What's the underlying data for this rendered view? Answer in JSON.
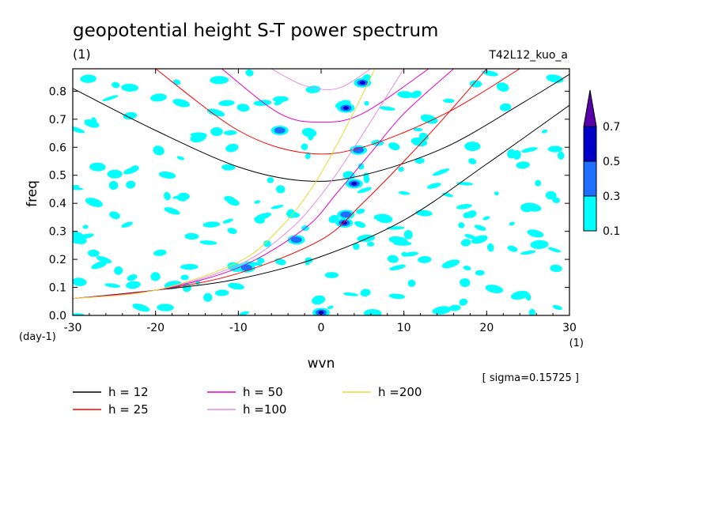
{
  "chart_data": {
    "type": "contour",
    "title": "geopotential height S-T power spectrum",
    "units_label": "(1)",
    "run_label": "T42L12_kuo_a",
    "xlabel": "wvn",
    "x_units": "(1)",
    "ylabel": "freq",
    "y_units": "(day-1)",
    "xlim": [
      -30,
      30
    ],
    "ylim": [
      0,
      0.88
    ],
    "x_ticks": [
      "-30",
      "-20",
      "-10",
      "0",
      "10",
      "20",
      "30"
    ],
    "y_ticks": [
      "0.0",
      "0.1",
      "0.2",
      "0.3",
      "0.4",
      "0.5",
      "0.6",
      "0.7",
      "0.8"
    ],
    "sigma_note": "[ sigma=0.15725 ]",
    "colorbar": {
      "levels": [
        "0.1",
        "0.3",
        "0.5",
        "0.7"
      ],
      "colors": [
        "#00ffff",
        "#1e6eff",
        "#0000c8",
        "#5a00aa"
      ]
    },
    "dispersion_curves": [
      {
        "label": "h = 12",
        "color": "#000000",
        "symmetric": {
          "x": [
            -30,
            -20,
            -10,
            -2,
            5,
            15,
            25,
            30
          ],
          "y": [
            0.81,
            0.66,
            0.53,
            0.48,
            0.5,
            0.6,
            0.77,
            0.86
          ]
        },
        "kelvin": {
          "x": [
            -30,
            -20,
            -10,
            0,
            10,
            20,
            30
          ],
          "y": [
            0.06,
            0.09,
            0.13,
            0.21,
            0.34,
            0.54,
            0.75
          ]
        }
      },
      {
        "label": "h = 25",
        "color": "#ff0000",
        "symmetric": {
          "x": [
            -20,
            -10,
            -2,
            5,
            15,
            24
          ],
          "y": [
            0.88,
            0.66,
            0.58,
            0.6,
            0.72,
            0.88
          ]
        },
        "kelvin": {
          "x": [
            -30,
            -20,
            -10,
            0,
            5,
            10,
            15,
            20
          ],
          "y": [
            0.06,
            0.09,
            0.15,
            0.27,
            0.4,
            0.55,
            0.71,
            0.88
          ]
        }
      },
      {
        "label": "h = 50",
        "color": "#e600c8",
        "symmetric": {
          "x": [
            -12,
            -5,
            0,
            5,
            13
          ],
          "y": [
            0.88,
            0.72,
            0.69,
            0.72,
            0.88
          ]
        },
        "kelvin": {
          "x": [
            -30,
            -20,
            -10,
            -2,
            2,
            6,
            10,
            16
          ],
          "y": [
            0.06,
            0.09,
            0.17,
            0.31,
            0.44,
            0.58,
            0.72,
            0.88
          ]
        }
      },
      {
        "label": "h =100",
        "color": "#e68ce6",
        "symmetric": {
          "x": [
            -6,
            -2,
            2,
            6
          ],
          "y": [
            0.88,
            0.82,
            0.81,
            0.88
          ]
        },
        "kelvin": {
          "x": [
            -30,
            -20,
            -10,
            -4,
            0,
            4,
            10
          ],
          "y": [
            0.06,
            0.09,
            0.18,
            0.3,
            0.43,
            0.6,
            0.88
          ]
        }
      },
      {
        "label": "h =200",
        "color": "#e6dc32",
        "kelvin": {
          "x": [
            -30,
            -20,
            -10,
            -5,
            -1,
            3,
            6.5
          ],
          "y": [
            0.06,
            0.09,
            0.19,
            0.31,
            0.46,
            0.67,
            0.88
          ]
        }
      }
    ],
    "hotspots": [
      {
        "x": 0,
        "y": 0.01,
        "level": 3
      },
      {
        "x": 2.8,
        "y": 0.33,
        "level": 3
      },
      {
        "x": 4,
        "y": 0.47,
        "level": 3
      },
      {
        "x": 3,
        "y": 0.74,
        "level": 3
      },
      {
        "x": 5,
        "y": 0.83,
        "level": 3
      },
      {
        "x": 4.5,
        "y": 0.59,
        "level": 2
      },
      {
        "x": -3,
        "y": 0.27,
        "level": 2
      },
      {
        "x": -5,
        "y": 0.66,
        "level": 2
      },
      {
        "x": 3,
        "y": 0.36,
        "level": 2
      },
      {
        "x": -9,
        "y": 0.17,
        "level": 2
      }
    ]
  }
}
